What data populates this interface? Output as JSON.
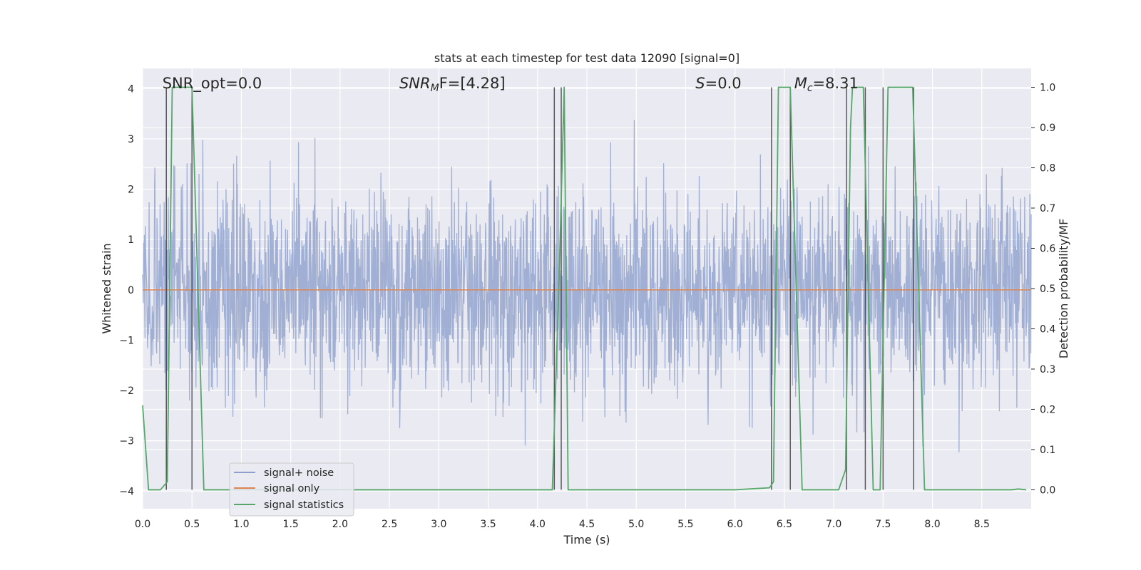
{
  "chart_data": {
    "type": "line",
    "title": "stats at each timestep for test data 12090 [signal=0]",
    "xlabel": "Time (s)",
    "ylabel": "Whitened strain",
    "ylabel_right": "Detection probability/MF",
    "xlim": [
      0.0,
      9.0
    ],
    "ylim": [
      -4.35,
      4.4
    ],
    "ylim_right": [
      -0.047,
      1.047
    ],
    "x_ticks": [
      0.0,
      0.5,
      1.0,
      1.5,
      2.0,
      2.5,
      3.0,
      3.5,
      4.0,
      4.5,
      5.0,
      5.5,
      6.0,
      6.5,
      7.0,
      7.5,
      8.0,
      8.5
    ],
    "x_tick_labels": [
      "0.0",
      "0.5",
      "1.0",
      "1.5",
      "2.0",
      "2.5",
      "3.0",
      "3.5",
      "4.0",
      "4.5",
      "5.0",
      "5.5",
      "6.0",
      "6.5",
      "7.0",
      "7.5",
      "8.0",
      "8.5"
    ],
    "y_ticks": [
      -4,
      -3,
      -2,
      -1,
      0,
      1,
      2,
      3,
      4
    ],
    "y_tick_labels": [
      "−4",
      "−3",
      "−2",
      "−1",
      "0",
      "1",
      "2",
      "3",
      "4"
    ],
    "y_right_ticks": [
      0.0,
      0.1,
      0.2,
      0.3,
      0.4,
      0.5,
      0.6,
      0.7,
      0.8,
      0.9,
      1.0
    ],
    "y_right_tick_labels": [
      "0.0",
      "0.1",
      "0.2",
      "0.3",
      "0.4",
      "0.5",
      "0.6",
      "0.7",
      "0.8",
      "0.9",
      "1.0"
    ],
    "grid": true,
    "legend_position": "lower-left",
    "annotations": [
      {
        "id": "snr-opt",
        "label": "SNR_opt=0.0",
        "x": 0.2
      },
      {
        "id": "snr-mf",
        "label": "SNR",
        "sub": "M",
        "tail": "F=[4.28]",
        "x": 2.6
      },
      {
        "id": "s-stat",
        "label": "S",
        "tail": "=0.0",
        "x": 5.6
      },
      {
        "id": "mc",
        "label": "M",
        "sub": "c",
        "tail": "=8.31",
        "x": 6.6
      }
    ],
    "series": [
      {
        "name": "signal+ noise",
        "color": "#8da0cb",
        "axis": "left",
        "band_quantiles": [
          -1.5,
          -0.72,
          0.0,
          0.85,
          1.65
        ],
        "noise_sigma": 1.0,
        "x_range": [
          0.0,
          9.0
        ]
      },
      {
        "name": "signal only",
        "color": "#dd8452",
        "axis": "left",
        "x": [
          0.0,
          9.0
        ],
        "y": [
          0.0,
          0.0
        ]
      },
      {
        "name": "signal statistics",
        "color": "#55a868",
        "axis": "right",
        "x": [
          0.0,
          0.06,
          0.18,
          0.25,
          0.3,
          0.5,
          0.62,
          0.9,
          4.1,
          4.15,
          4.22,
          4.27,
          4.31,
          4.4,
          6.0,
          6.35,
          6.39,
          6.44,
          6.56,
          6.68,
          7.05,
          7.12,
          7.17,
          7.19,
          7.3,
          7.4,
          7.47,
          7.55,
          7.6,
          7.65,
          7.8,
          7.92,
          8.0,
          8.7,
          8.8,
          8.87,
          8.95
        ],
        "y": [
          0.21,
          0.0,
          0.0,
          0.02,
          1.0,
          1.0,
          0.0,
          0.0,
          0.0,
          0.0,
          0.54,
          1.0,
          0.0,
          0.0,
          0.0,
          0.005,
          0.02,
          1.0,
          1.0,
          0.0,
          0.0,
          0.05,
          0.9,
          1.0,
          1.0,
          0.0,
          0.0,
          1.0,
          1.0,
          1.0,
          1.0,
          0.0,
          0.0,
          0.0,
          0.0,
          0.002,
          0.0
        ]
      }
    ],
    "vertical_lines": {
      "color": "#404040",
      "x": [
        0.24,
        0.5,
        4.17,
        4.24,
        6.37,
        6.56,
        7.13,
        7.32,
        7.5,
        7.81
      ]
    }
  }
}
